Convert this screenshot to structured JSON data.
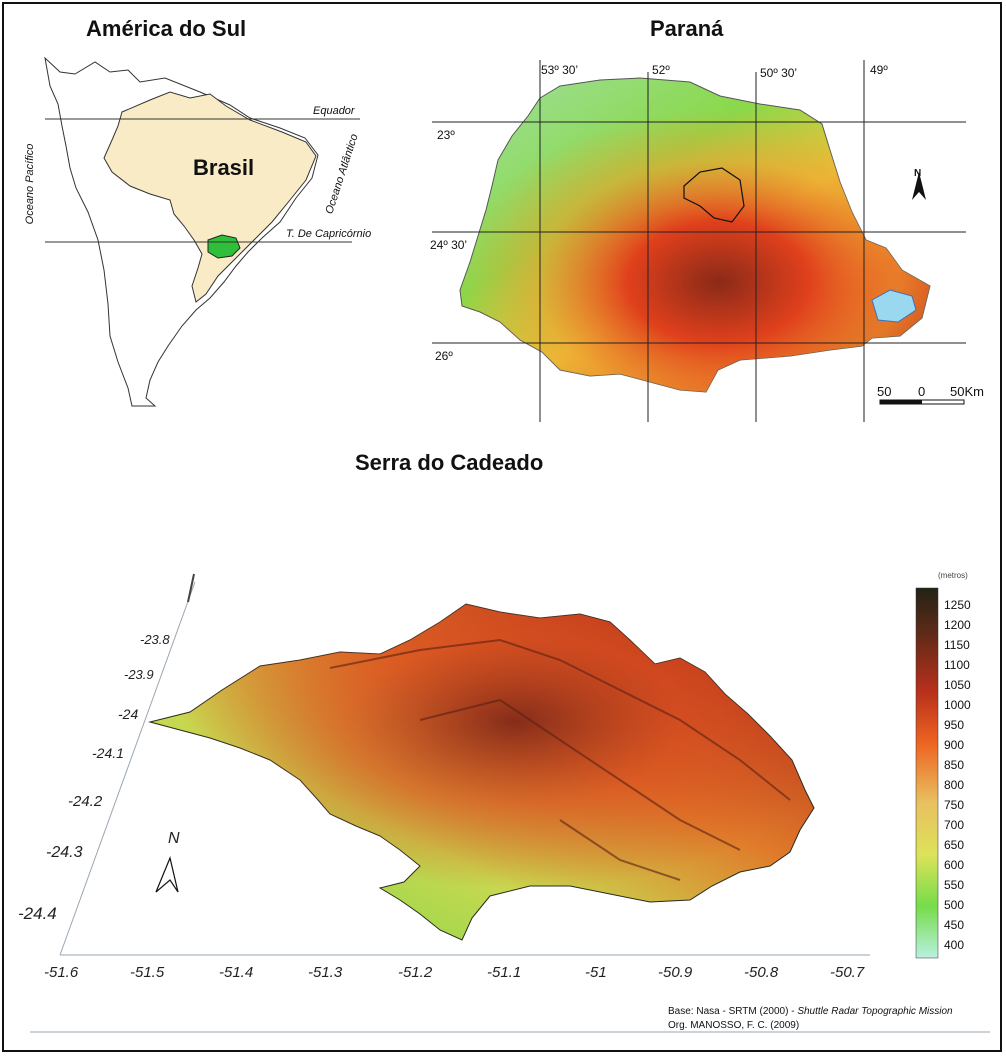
{
  "south_america": {
    "title": "América do Sul",
    "country_label": "Brasil",
    "equator_label": "Equador",
    "tropic_label": "T. De Capricórnio",
    "pacific_label": "Oceano Pacífico",
    "atlantic_label": "Oceano Atlântico"
  },
  "parana": {
    "title": "Paraná",
    "longitudes": [
      "53º 30’",
      "52º",
      "50º 30’",
      "49º"
    ],
    "latitudes": [
      "23º",
      "24º 30’",
      "26º"
    ],
    "scale_labels": [
      "50",
      "0",
      "50Km"
    ],
    "north_label": "N"
  },
  "serra": {
    "title": "Serra do Cadeado",
    "north_label": "N",
    "y_ticks": [
      "-23.8",
      "-23.9",
      "-24",
      "-24.1",
      "-24.2",
      "-24.3",
      "-24.4"
    ],
    "x_ticks": [
      "-51.6",
      "-51.5",
      "-51.4",
      "-51.3",
      "-51.2",
      "-51.1",
      "-51",
      "-50.9",
      "-50.8",
      "-50.7"
    ],
    "legend_unit": "(metros)",
    "legend_values": [
      "1250",
      "1200",
      "1150",
      "1100",
      "1050",
      "1000",
      "950",
      "900",
      "850",
      "800",
      "750",
      "700",
      "650",
      "600",
      "550",
      "500",
      "450",
      "400"
    ],
    "legend_colors": [
      "#232316",
      "#3c1c10",
      "#5e2a18",
      "#7a2a18",
      "#9b2a1a",
      "#b8301c",
      "#d43a1e",
      "#e6461e",
      "#ee6422",
      "#f07c2a",
      "#f0a040",
      "#e8c060",
      "#e6d878",
      "#dde25a",
      "#c8e24a",
      "#9ee03e",
      "#76dc4a",
      "#9eeaa8"
    ]
  },
  "credits": {
    "line1_plain": "Base: Nasa - SRTM (2000) - ",
    "line1_italic": "Shuttle Radar Topographic Mission",
    "line2": "Org. MANOSSO, F. C. (2009)"
  }
}
